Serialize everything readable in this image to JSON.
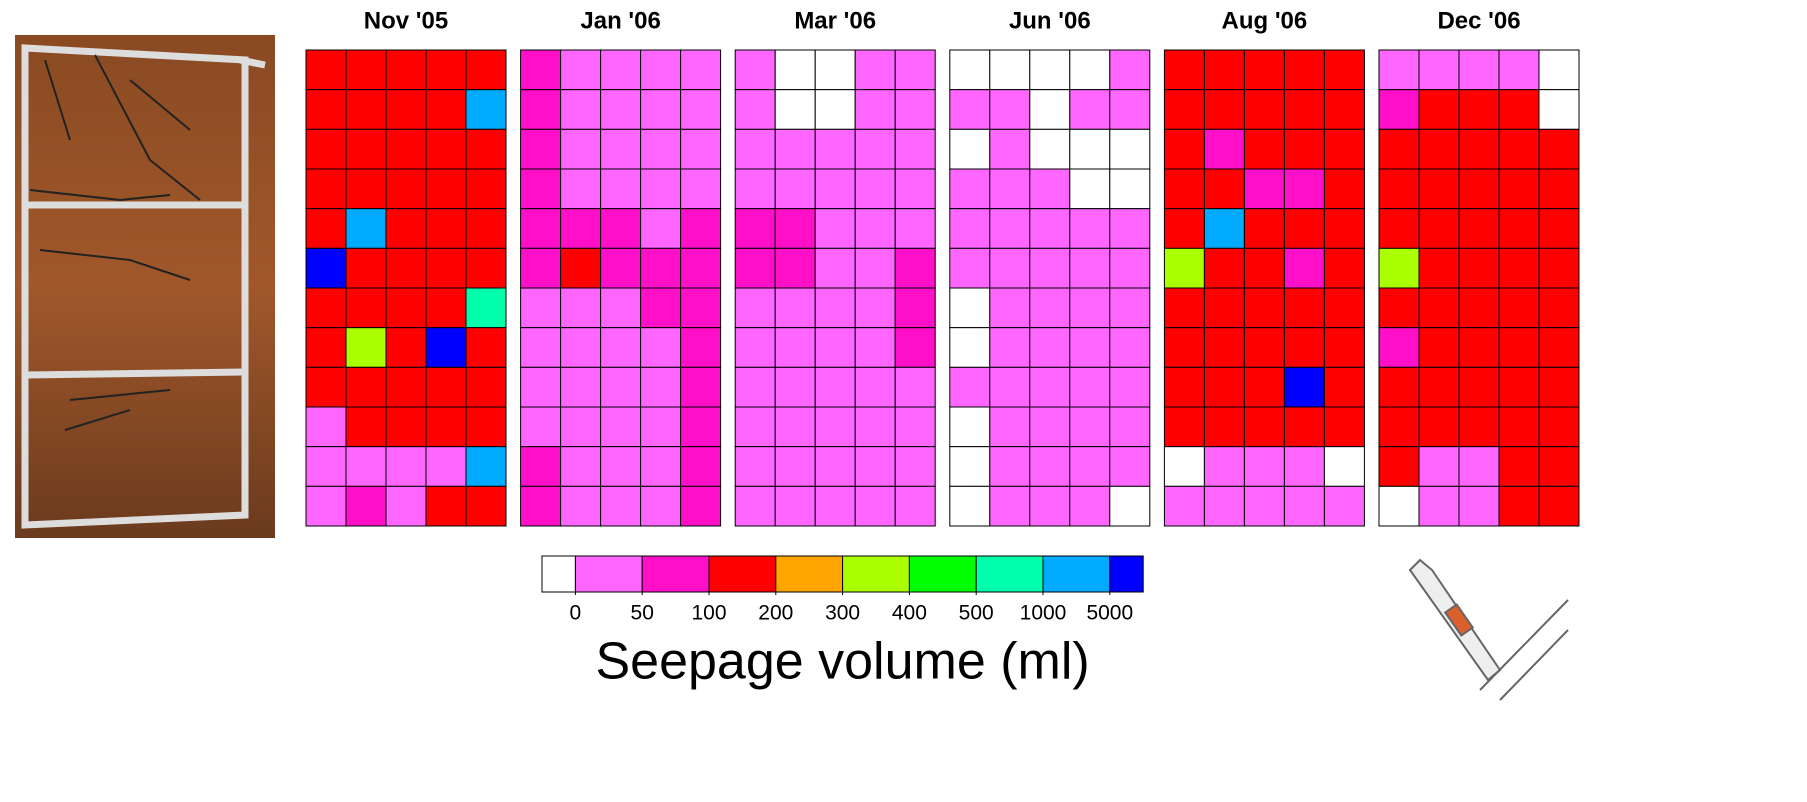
{
  "chart_data": {
    "type": "heatmap",
    "panels": [
      {
        "title": "Nov '05",
        "cells": [
          [
            150,
            150,
            150,
            150,
            150
          ],
          [
            150,
            150,
            150,
            150,
            3000
          ],
          [
            150,
            150,
            150,
            150,
            150
          ],
          [
            150,
            150,
            150,
            150,
            150
          ],
          [
            150,
            3000,
            150,
            150,
            150
          ],
          [
            6000,
            150,
            150,
            150,
            150
          ],
          [
            150,
            150,
            150,
            150,
            750
          ],
          [
            150,
            350,
            150,
            6000,
            150
          ],
          [
            150,
            150,
            150,
            150,
            150
          ],
          [
            25,
            150,
            150,
            150,
            150
          ],
          [
            25,
            25,
            25,
            25,
            3000
          ],
          [
            25,
            75,
            25,
            150,
            150
          ]
        ]
      },
      {
        "title": "Jan '06",
        "cells": [
          [
            75,
            25,
            25,
            25,
            25
          ],
          [
            75,
            25,
            25,
            25,
            25
          ],
          [
            75,
            25,
            25,
            25,
            25
          ],
          [
            75,
            25,
            25,
            25,
            25
          ],
          [
            75,
            75,
            75,
            25,
            75
          ],
          [
            75,
            150,
            75,
            75,
            75
          ],
          [
            25,
            25,
            25,
            75,
            75
          ],
          [
            25,
            25,
            25,
            25,
            75
          ],
          [
            25,
            25,
            25,
            25,
            75
          ],
          [
            25,
            25,
            25,
            25,
            75
          ],
          [
            75,
            25,
            25,
            25,
            75
          ],
          [
            75,
            25,
            25,
            25,
            75
          ]
        ]
      },
      {
        "title": "Mar '06",
        "cells": [
          [
            25,
            0,
            0,
            25,
            25
          ],
          [
            25,
            0,
            0,
            25,
            25
          ],
          [
            25,
            25,
            25,
            25,
            25
          ],
          [
            25,
            25,
            25,
            25,
            25
          ],
          [
            75,
            75,
            25,
            25,
            25
          ],
          [
            75,
            75,
            25,
            25,
            75
          ],
          [
            25,
            25,
            25,
            25,
            75
          ],
          [
            25,
            25,
            25,
            25,
            75
          ],
          [
            25,
            25,
            25,
            25,
            25
          ],
          [
            25,
            25,
            25,
            25,
            25
          ],
          [
            25,
            25,
            25,
            25,
            25
          ],
          [
            25,
            25,
            25,
            25,
            25
          ]
        ]
      },
      {
        "title": "Jun '06",
        "cells": [
          [
            0,
            0,
            0,
            0,
            25
          ],
          [
            25,
            25,
            0,
            25,
            25
          ],
          [
            0,
            25,
            0,
            0,
            0
          ],
          [
            25,
            25,
            25,
            0,
            0
          ],
          [
            25,
            25,
            25,
            25,
            25
          ],
          [
            25,
            25,
            25,
            25,
            25
          ],
          [
            0,
            25,
            25,
            25,
            25
          ],
          [
            0,
            25,
            25,
            25,
            25
          ],
          [
            25,
            25,
            25,
            25,
            25
          ],
          [
            0,
            25,
            25,
            25,
            25
          ],
          [
            0,
            25,
            25,
            25,
            25
          ],
          [
            0,
            25,
            25,
            25,
            0
          ]
        ]
      },
      {
        "title": "Aug '06",
        "cells": [
          [
            150,
            150,
            150,
            150,
            150
          ],
          [
            150,
            150,
            150,
            150,
            150
          ],
          [
            150,
            75,
            150,
            150,
            150
          ],
          [
            150,
            150,
            75,
            75,
            150
          ],
          [
            150,
            3000,
            150,
            150,
            150
          ],
          [
            350,
            150,
            150,
            75,
            150
          ],
          [
            150,
            150,
            150,
            150,
            150
          ],
          [
            150,
            150,
            150,
            150,
            150
          ],
          [
            150,
            150,
            150,
            6000,
            150
          ],
          [
            150,
            150,
            150,
            150,
            150
          ],
          [
            0,
            25,
            25,
            25,
            0
          ],
          [
            25,
            25,
            25,
            25,
            25
          ]
        ]
      },
      {
        "title": "Dec '06",
        "cells": [
          [
            25,
            25,
            25,
            25,
            0
          ],
          [
            75,
            150,
            150,
            150,
            0
          ],
          [
            150,
            150,
            150,
            150,
            150
          ],
          [
            150,
            150,
            150,
            150,
            150
          ],
          [
            150,
            150,
            150,
            150,
            150
          ],
          [
            350,
            150,
            150,
            150,
            150
          ],
          [
            150,
            150,
            150,
            150,
            150
          ],
          [
            75,
            150,
            150,
            150,
            150
          ],
          [
            150,
            150,
            150,
            150,
            150
          ],
          [
            150,
            150,
            150,
            150,
            150
          ],
          [
            150,
            25,
            25,
            150,
            150
          ],
          [
            0,
            25,
            25,
            150,
            150
          ]
        ]
      }
    ],
    "colorbar": {
      "label": "Seepage volume (ml)",
      "ticks": [
        0,
        50,
        100,
        200,
        300,
        400,
        500,
        1000,
        5000
      ],
      "colors": [
        "#ffffff",
        "#ff66ff",
        "#ff0fc8",
        "#ff0000",
        "#ffa500",
        "#aaff00",
        "#00ff00",
        "#00ffaa",
        "#00aaff",
        "#0000ff"
      ]
    }
  }
}
